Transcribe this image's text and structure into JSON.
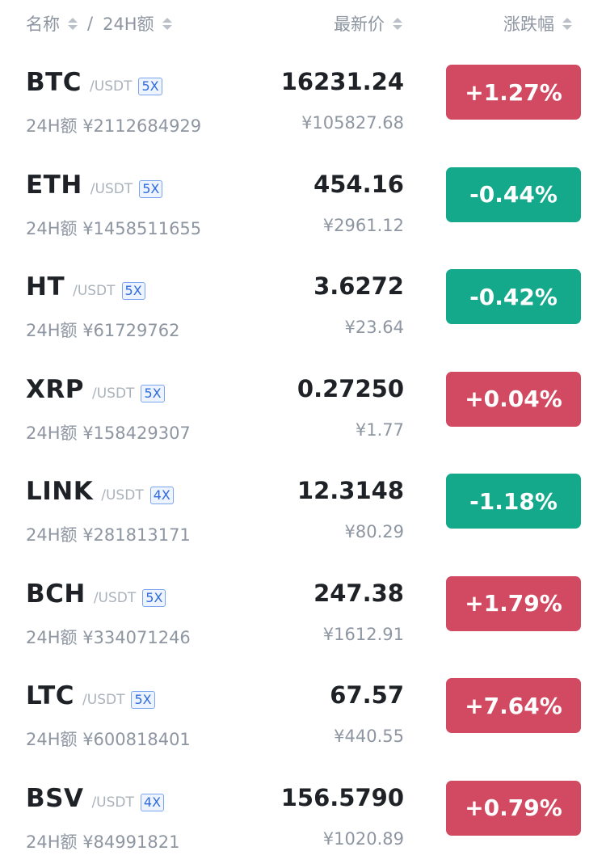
{
  "header": {
    "name_label": "名称",
    "separator": "/",
    "volume_label": "24H额",
    "price_label": "最新价",
    "change_label": "涨跌幅"
  },
  "colors": {
    "up": "#d24a61",
    "down": "#13a98a"
  },
  "rows": [
    {
      "base": "BTC",
      "quote": "/USDT",
      "leverage": "5X",
      "volume": "24H额 ¥2112684929",
      "price": "16231.24",
      "cny": "¥105827.68",
      "change": "+1.27%",
      "dir": "up"
    },
    {
      "base": "ETH",
      "quote": "/USDT",
      "leverage": "5X",
      "volume": "24H额 ¥1458511655",
      "price": "454.16",
      "cny": "¥2961.12",
      "change": "-0.44%",
      "dir": "down"
    },
    {
      "base": "HT",
      "quote": "/USDT",
      "leverage": "5X",
      "volume": "24H额 ¥61729762",
      "price": "3.6272",
      "cny": "¥23.64",
      "change": "-0.42%",
      "dir": "down"
    },
    {
      "base": "XRP",
      "quote": "/USDT",
      "leverage": "5X",
      "volume": "24H额 ¥158429307",
      "price": "0.27250",
      "cny": "¥1.77",
      "change": "+0.04%",
      "dir": "up"
    },
    {
      "base": "LINK",
      "quote": "/USDT",
      "leverage": "4X",
      "volume": "24H额 ¥281813171",
      "price": "12.3148",
      "cny": "¥80.29",
      "change": "-1.18%",
      "dir": "down"
    },
    {
      "base": "BCH",
      "quote": "/USDT",
      "leverage": "5X",
      "volume": "24H额 ¥334071246",
      "price": "247.38",
      "cny": "¥1612.91",
      "change": "+1.79%",
      "dir": "up"
    },
    {
      "base": "LTC",
      "quote": "/USDT",
      "leverage": "5X",
      "volume": "24H额 ¥600818401",
      "price": "67.57",
      "cny": "¥440.55",
      "change": "+7.64%",
      "dir": "up"
    },
    {
      "base": "BSV",
      "quote": "/USDT",
      "leverage": "4X",
      "volume": "24H额 ¥84991821",
      "price": "156.5790",
      "cny": "¥1020.89",
      "change": "+0.79%",
      "dir": "up"
    }
  ]
}
